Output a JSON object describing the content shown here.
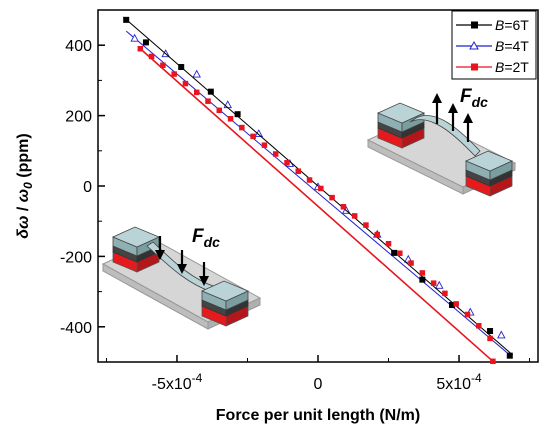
{
  "chart_data": {
    "type": "line",
    "xlabel": "Force per unit length (N/m)",
    "ylabel_parts": {
      "delta": "δ",
      "omega": "ω",
      "sep": " / ",
      "omega0": "ω",
      "sub0": "0",
      "units": " (ppm)"
    },
    "xlim": [
      -0.00078,
      0.00078
    ],
    "ylim": [
      -500,
      500
    ],
    "x_ticks": [
      {
        "value": -0.0005,
        "base": "-5x10",
        "exp": "-4"
      },
      {
        "value": 0,
        "base": "0",
        "exp": ""
      },
      {
        "value": 0.0005,
        "base": "5x10",
        "exp": "-4"
      }
    ],
    "y_ticks": [
      {
        "value": 400,
        "label": "400"
      },
      {
        "value": 200,
        "label": "200"
      },
      {
        "value": 0,
        "label": "0"
      },
      {
        "value": -200,
        "label": "-200"
      },
      {
        "value": -400,
        "label": "-400"
      }
    ],
    "legend_position": "top-right",
    "series": [
      {
        "name": "B=6T",
        "label_prefix": "B",
        "label_suffix": "=6T",
        "color": "#000000",
        "marker": "square-filled",
        "line": [
          [
            -0.00069,
            480
          ],
          [
            0.00069,
            -480
          ]
        ],
        "points": [
          [
            -0.00068,
            472
          ],
          [
            -0.00061,
            408
          ],
          [
            -0.000485,
            338
          ],
          [
            -0.00038,
            268
          ],
          [
            -0.000285,
            204
          ],
          [
            0.00027,
            -190
          ],
          [
            0.00037,
            -266
          ],
          [
            0.000475,
            -338
          ],
          [
            0.00061,
            -412
          ],
          [
            0.00068,
            -482
          ]
        ]
      },
      {
        "name": "B=4T",
        "label_prefix": "B",
        "label_suffix": "=4T",
        "color": "#2222cc",
        "marker": "triangle-open",
        "line": [
          [
            -0.00068,
            440
          ],
          [
            0.00068,
            -480
          ]
        ],
        "points": [
          [
            -0.00065,
            420
          ],
          [
            -0.00054,
            376
          ],
          [
            -0.00043,
            318
          ],
          [
            -0.00032,
            231
          ],
          [
            -0.00021,
            149
          ],
          [
            -0.0001,
            64
          ],
          [
            0.0,
            -2
          ],
          [
            0.0001,
            -69
          ],
          [
            0.00021,
            -137
          ],
          [
            0.00032,
            -208
          ],
          [
            0.00043,
            -282
          ],
          [
            0.00054,
            -358
          ],
          [
            0.00065,
            -423
          ]
        ]
      },
      {
        "name": "B=2T",
        "label_prefix": "B",
        "label_suffix": "=2T",
        "color": "#e8141e",
        "marker": "square-filled",
        "line": [
          [
            -0.00063,
            390
          ],
          [
            0.00062,
            -498
          ]
        ],
        "points": [
          [
            -0.00063,
            390
          ],
          [
            -0.00059,
            368
          ],
          [
            -0.00055,
            343
          ],
          [
            -0.00051,
            318
          ],
          [
            -0.00047,
            291
          ],
          [
            -0.00043,
            266
          ],
          [
            -0.00039,
            241
          ],
          [
            -0.00035,
            215
          ],
          [
            -0.00031,
            191
          ],
          [
            -0.00027,
            166
          ],
          [
            -0.00023,
            141
          ],
          [
            -0.00019,
            116
          ],
          [
            -0.00015,
            91
          ],
          [
            -0.00011,
            66
          ],
          [
            -7e-05,
            42
          ],
          [
            -3e-05,
            17
          ],
          [
            1e-05,
            -7
          ],
          [
            5e-05,
            -33
          ],
          [
            9e-05,
            -59
          ],
          [
            0.00013,
            -85
          ],
          [
            0.00017,
            -111
          ],
          [
            0.00021,
            -138
          ],
          [
            0.00025,
            -164
          ],
          [
            0.00029,
            -191
          ],
          [
            0.00033,
            -219
          ],
          [
            0.00037,
            -247
          ],
          [
            0.00041,
            -276
          ],
          [
            0.00045,
            -305
          ],
          [
            0.00049,
            -335
          ],
          [
            0.00053,
            -365
          ],
          [
            0.00057,
            -397
          ],
          [
            0.00061,
            -433
          ],
          [
            0.00062,
            -498
          ]
        ]
      }
    ],
    "annotations": [
      {
        "base": "F",
        "sub": "dc",
        "direction": "up"
      },
      {
        "base": "F",
        "sub": "dc",
        "direction": "down"
      }
    ]
  }
}
